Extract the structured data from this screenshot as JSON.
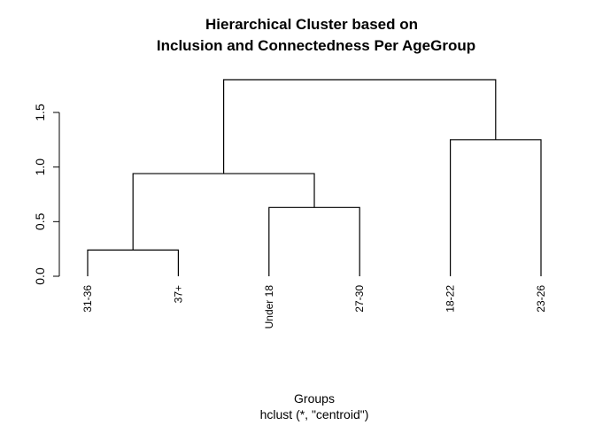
{
  "chart_data": {
    "type": "dendrogram",
    "title_line1": "Hierarchical Cluster based on",
    "title_line2": "Inclusion and Connectedness Per AgeGroup",
    "xlabel": "Groups",
    "sublabel": "hclust (*, \"centroid\")",
    "ylim": [
      0,
      1.8
    ],
    "yticks": [
      0.0,
      0.5,
      1.0,
      1.5
    ],
    "ytick_labels": [
      "0.0",
      "0.5",
      "1.0",
      "1.5"
    ],
    "leaves": [
      "31-36",
      "37+",
      "Under 18",
      "27-30",
      "18-22",
      "23-26"
    ],
    "merges": [
      {
        "left": "leaf:31-36",
        "right": "leaf:37+",
        "height": 0.24
      },
      {
        "left": "leaf:Under 18",
        "right": "leaf:27-30",
        "height": 0.63
      },
      {
        "left": "merge:0",
        "right": "merge:1",
        "height": 0.94
      },
      {
        "left": "leaf:18-22",
        "right": "leaf:23-26",
        "height": 1.25
      },
      {
        "left": "merge:2",
        "right": "merge:3",
        "height": 1.8
      }
    ]
  }
}
